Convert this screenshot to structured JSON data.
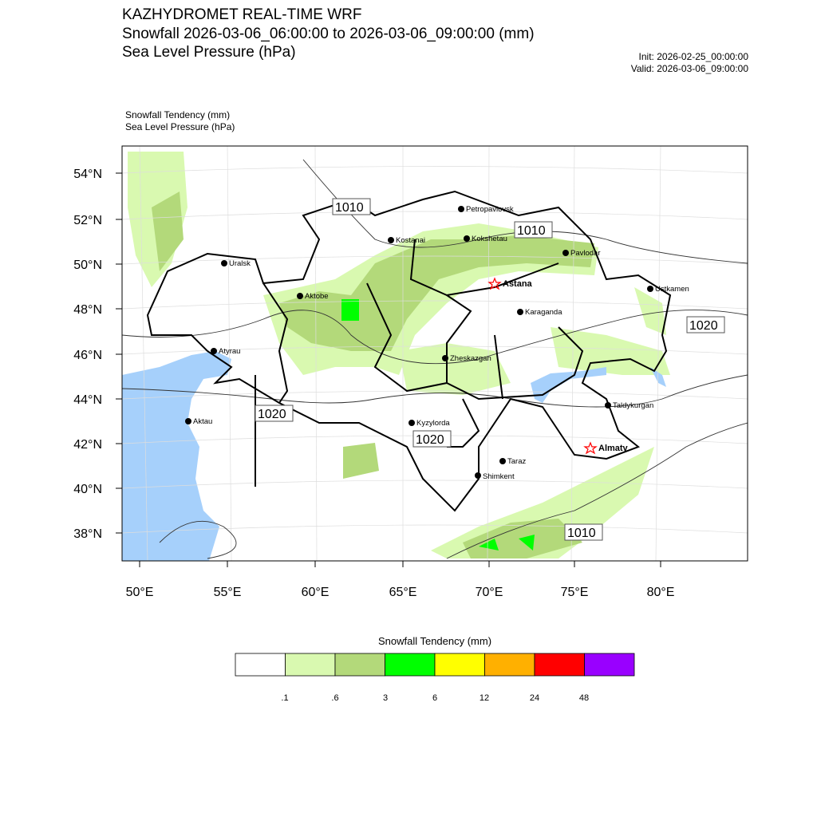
{
  "header": {
    "title_lines": [
      "KAZHYDROMET REAL-TIME WRF",
      "Snowfall 2026-03-06_06:00:00 to 2026-03-06_09:00:00 (mm)",
      "Sea Level Pressure  (hPa)"
    ],
    "init": "Init: 2026-02-25_00:00:00",
    "valid": "Valid: 2026-03-06_09:00:00",
    "field1": "Snowfall Tendency   (mm)",
    "field2": "Sea Level Pressure   (hPa)"
  },
  "axes": {
    "lat_labels": [
      "54°N",
      "52°N",
      "50°N",
      "48°N",
      "46°N",
      "44°N",
      "42°N",
      "40°N",
      "38°N"
    ],
    "lon_labels": [
      "50°E",
      "55°E",
      "60°E",
      "65°E",
      "70°E",
      "75°E",
      "80°E"
    ]
  },
  "cities": [
    "Petropavlovsk",
    "Kostanai",
    "Kokshetau",
    "Pavlodar",
    "Uralsk",
    "Astana",
    "Aktobe",
    "Ustkamen",
    "Karaganda",
    "Atyrau",
    "Zheskazgan",
    "Aktau",
    "Kyzylorda",
    "Taldykurgan",
    "Almaty",
    "Taraz",
    "Shimkent"
  ],
  "isobar_labels": [
    "1010",
    "1010",
    "1020",
    "1020",
    "1020",
    "1010"
  ],
  "colorbar": {
    "title": "Snowfall Tendency (mm)",
    "colors": [
      "#ffffff",
      "#d9f9b0",
      "#b3d97a",
      "#00ff00",
      "#ffff00",
      "#ffb000",
      "#ff0000",
      "#9900ff"
    ],
    "labels": [
      ".1",
      ".6",
      "3",
      "6",
      "12",
      "24",
      "48"
    ]
  }
}
